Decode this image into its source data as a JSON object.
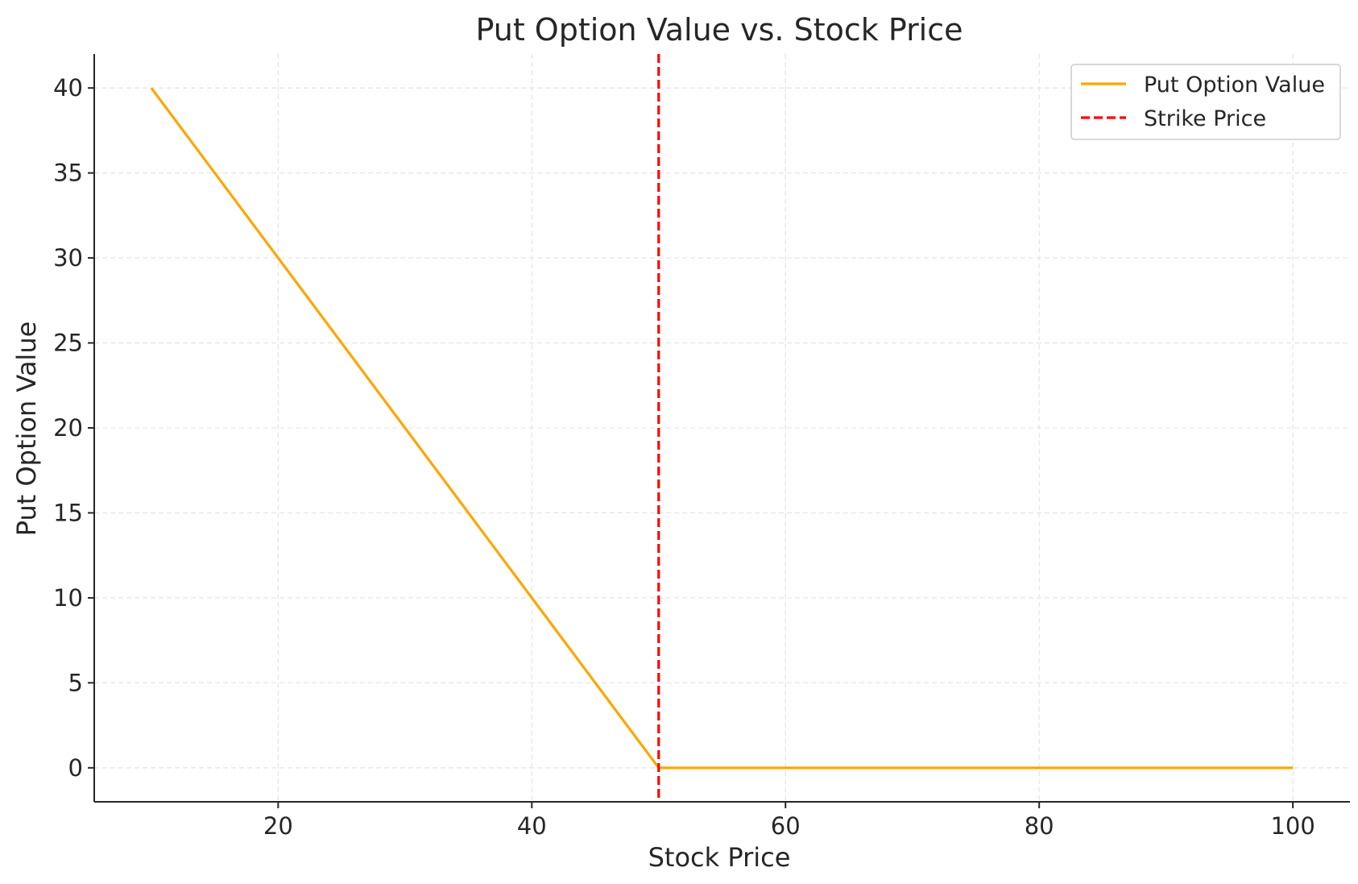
{
  "chart_data": {
    "type": "line",
    "title": "Put Option Value vs. Stock Price",
    "xlabel": "Stock Price",
    "ylabel": "Put Option Value",
    "xlim": [
      5.5,
      104.5
    ],
    "ylim": [
      -2,
      42
    ],
    "xticks": [
      20,
      40,
      60,
      80,
      100
    ],
    "yticks": [
      0,
      5,
      10,
      15,
      20,
      25,
      30,
      35,
      40
    ],
    "grid": true,
    "legend_position": "top-right",
    "series": [
      {
        "name": "Put Option Value",
        "color": "#FFA500",
        "style": "solid",
        "x": [
          10,
          50,
          100
        ],
        "y": [
          40,
          0,
          0
        ]
      }
    ],
    "vlines": [
      {
        "name": "Strike Price",
        "x": 50,
        "color": "#FF0000",
        "style": "dashed"
      }
    ]
  }
}
